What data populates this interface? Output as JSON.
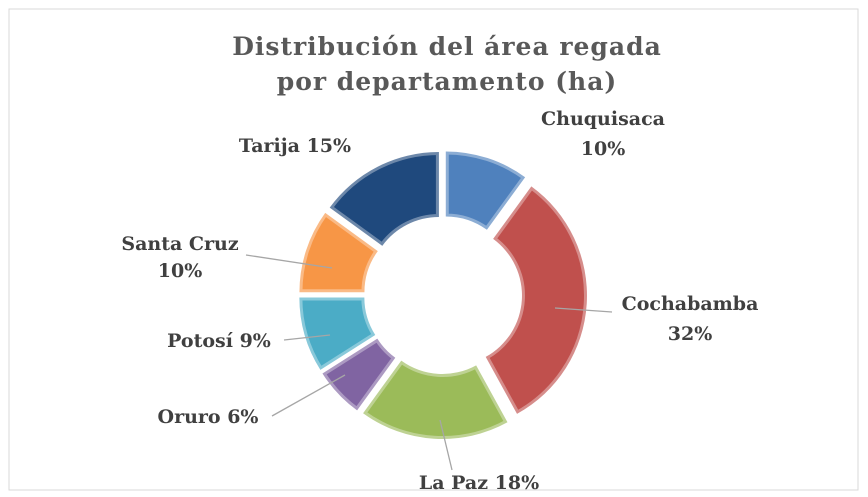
{
  "chart_data": {
    "type": "donut",
    "title": "Distribución del área regada por departamento (ha)",
    "categories": [
      "Chuquisaca",
      "Cochabamba",
      "La Paz",
      "Oruro",
      "Potosí",
      "Santa Cruz",
      "Tarija"
    ],
    "values": [
      10,
      32,
      18,
      6,
      9,
      10,
      15
    ],
    "value_labels": [
      "10%",
      "32%",
      "18%",
      "6%",
      "9%",
      "10%",
      "15%"
    ],
    "colors": [
      "#4f81bd",
      "#c0504d",
      "#9bbb59",
      "#8064a2",
      "#4bacc6",
      "#f79646",
      "#1f497d"
    ]
  }
}
